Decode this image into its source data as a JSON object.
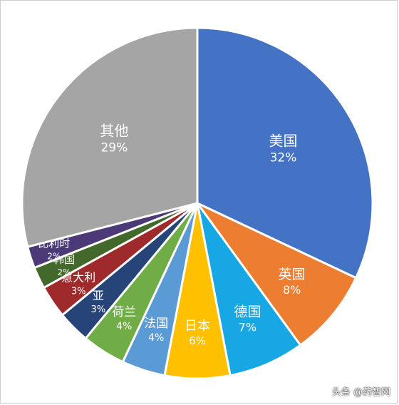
{
  "chart_data": {
    "type": "pie",
    "title": "",
    "unit": "%",
    "slices": [
      {
        "label": "美国",
        "value": 32,
        "value_text": "32%",
        "color": "#4472c4"
      },
      {
        "label": "英国",
        "value": 8,
        "value_text": "8%",
        "color": "#ed7d31"
      },
      {
        "label": "德国",
        "value": 7,
        "value_text": "7%",
        "color": "#18a7e5"
      },
      {
        "label": "日本",
        "value": 6,
        "value_text": "6%",
        "color": "#ffc000"
      },
      {
        "label": "法国",
        "value": 4,
        "value_text": "4%",
        "color": "#5b9bd5"
      },
      {
        "label": "荷兰",
        "value": 4,
        "value_text": "4%",
        "color": "#70ad47"
      },
      {
        "label": "亚",
        "value": 3,
        "value_text": "3%",
        "color": "#264478"
      },
      {
        "label": "意大利",
        "value": 3,
        "value_text": "3%",
        "color": "#9e2a2b"
      },
      {
        "label": "韩国",
        "value": 2,
        "value_text": "2%",
        "color": "#43682b"
      },
      {
        "label": "比利时",
        "value": 2,
        "value_text": "2%",
        "color": "#4c3a78"
      },
      {
        "label": "其他",
        "value": 29,
        "value_text": "29%",
        "color": "#a5a5a5"
      }
    ]
  },
  "watermark": "头条 @药智网"
}
